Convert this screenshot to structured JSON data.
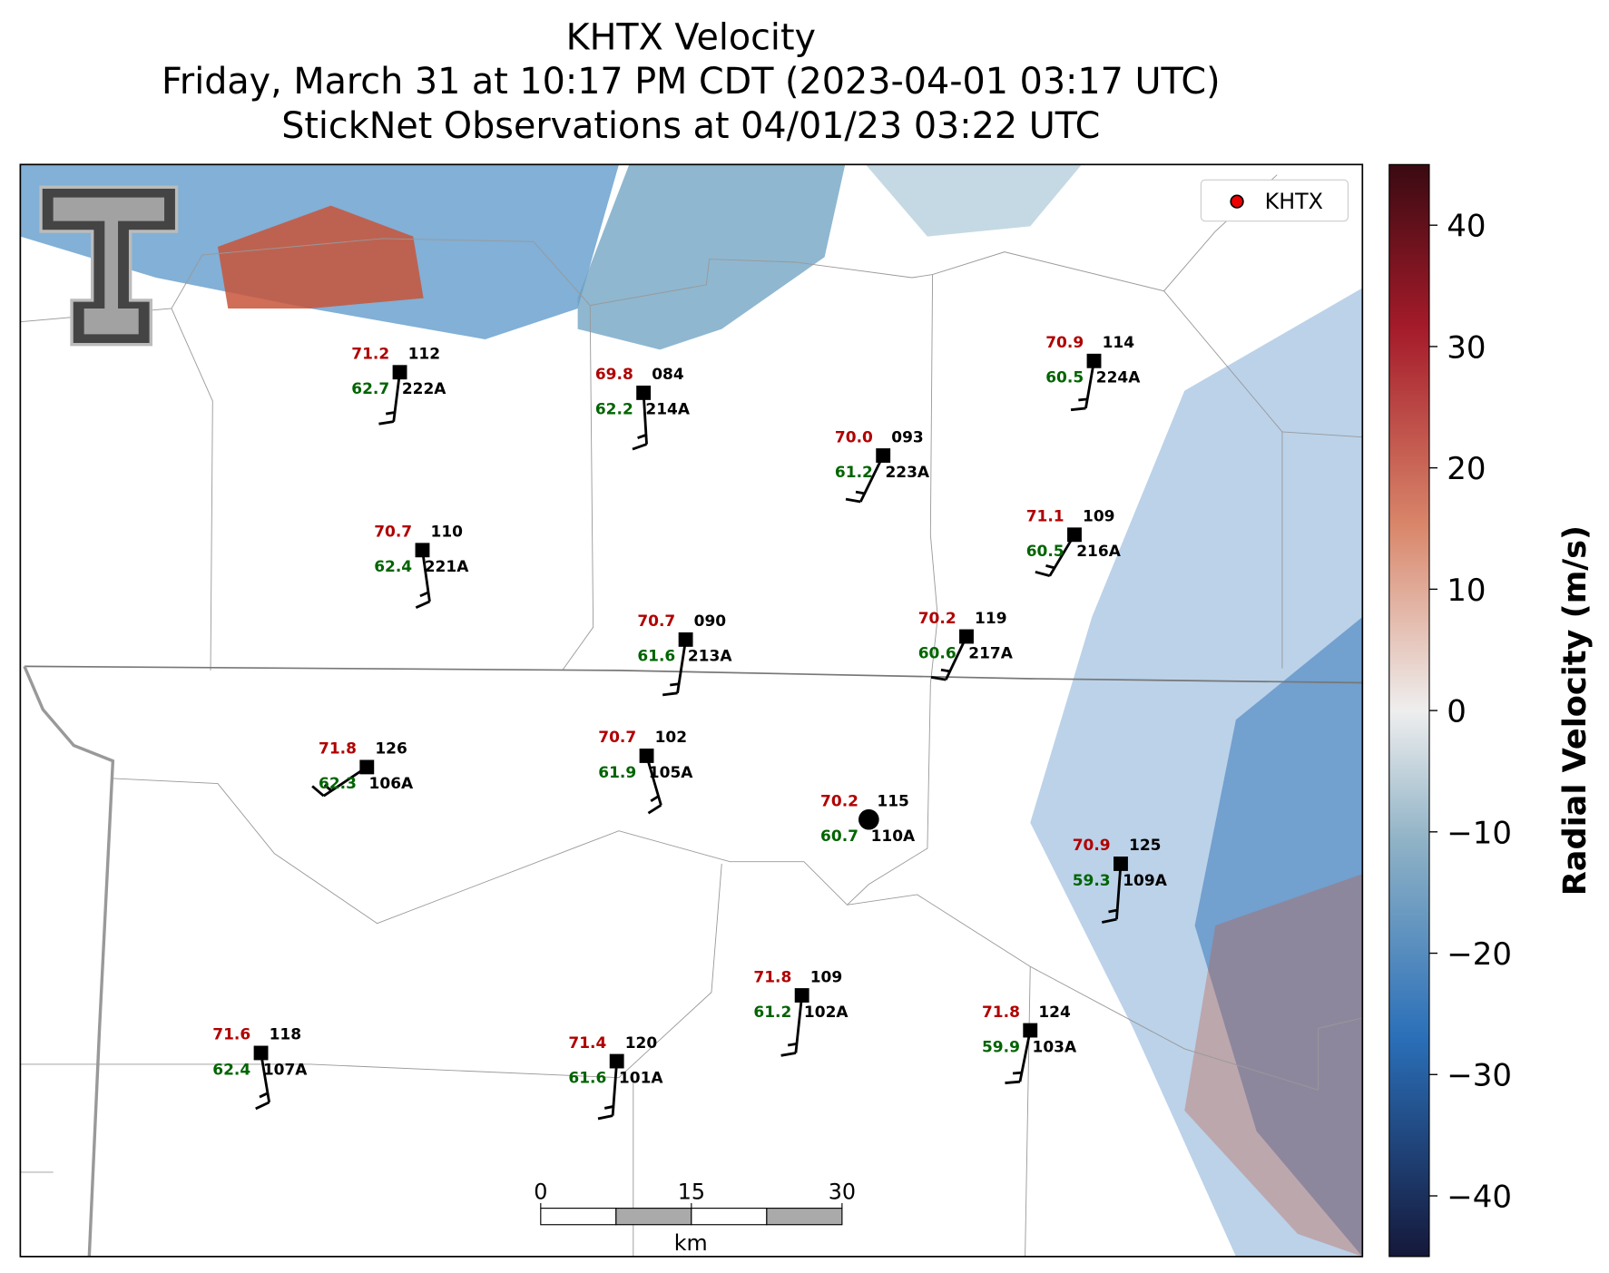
{
  "title_lines": [
    "KHTX Velocity",
    "Friday, March 31 at 10:17 PM CDT (2023-04-01 03:17 UTC)",
    "StickNet Observations at 04/01/23 03:22 UTC"
  ],
  "legend": "KHTX",
  "colorbar": {
    "label": "Radial Velocity (m/s)",
    "ylim": [
      -45,
      45
    ],
    "yticks": [
      -40,
      -30,
      -20,
      -10,
      0,
      10,
      20,
      30,
      40
    ]
  },
  "scale_bar": {
    "ticks": [
      0,
      15,
      30
    ],
    "unit": "km"
  },
  "stations": [
    {
      "id": "222A",
      "temp": "71.2",
      "dew": "62.7",
      "pressure": "112"
    },
    {
      "id": "214A",
      "temp": "69.8",
      "dew": "62.2",
      "pressure": "084"
    },
    {
      "id": "223A",
      "temp": "70.0",
      "dew": "61.2",
      "pressure": "093"
    },
    {
      "id": "224A",
      "temp": "70.9",
      "dew": "60.5",
      "pressure": "114"
    },
    {
      "id": "216A",
      "temp": "71.1",
      "dew": "60.5",
      "pressure": "109"
    },
    {
      "id": "221A",
      "temp": "70.7",
      "dew": "62.4",
      "pressure": "110"
    },
    {
      "id": "213A",
      "temp": "70.7",
      "dew": "61.6",
      "pressure": "090"
    },
    {
      "id": "217A",
      "temp": "70.2",
      "dew": "60.6",
      "pressure": "119"
    },
    {
      "id": "106A",
      "temp": "71.8",
      "dew": "62.3",
      "pressure": "126"
    },
    {
      "id": "105A",
      "temp": "70.7",
      "dew": "61.9",
      "pressure": "102"
    },
    {
      "id": "110A",
      "temp": "70.2",
      "dew": "60.7",
      "pressure": "115"
    },
    {
      "id": "109A",
      "temp": "70.9",
      "dew": "59.3",
      "pressure": "125"
    },
    {
      "id": "102A",
      "temp": "71.8",
      "dew": "61.2",
      "pressure": "109"
    },
    {
      "id": "103A",
      "temp": "71.8",
      "dew": "59.9",
      "pressure": "124"
    },
    {
      "id": "107A",
      "temp": "71.6",
      "dew": "62.4",
      "pressure": "118"
    },
    {
      "id": "101A",
      "temp": "71.4",
      "dew": "61.6",
      "pressure": "120"
    }
  ]
}
